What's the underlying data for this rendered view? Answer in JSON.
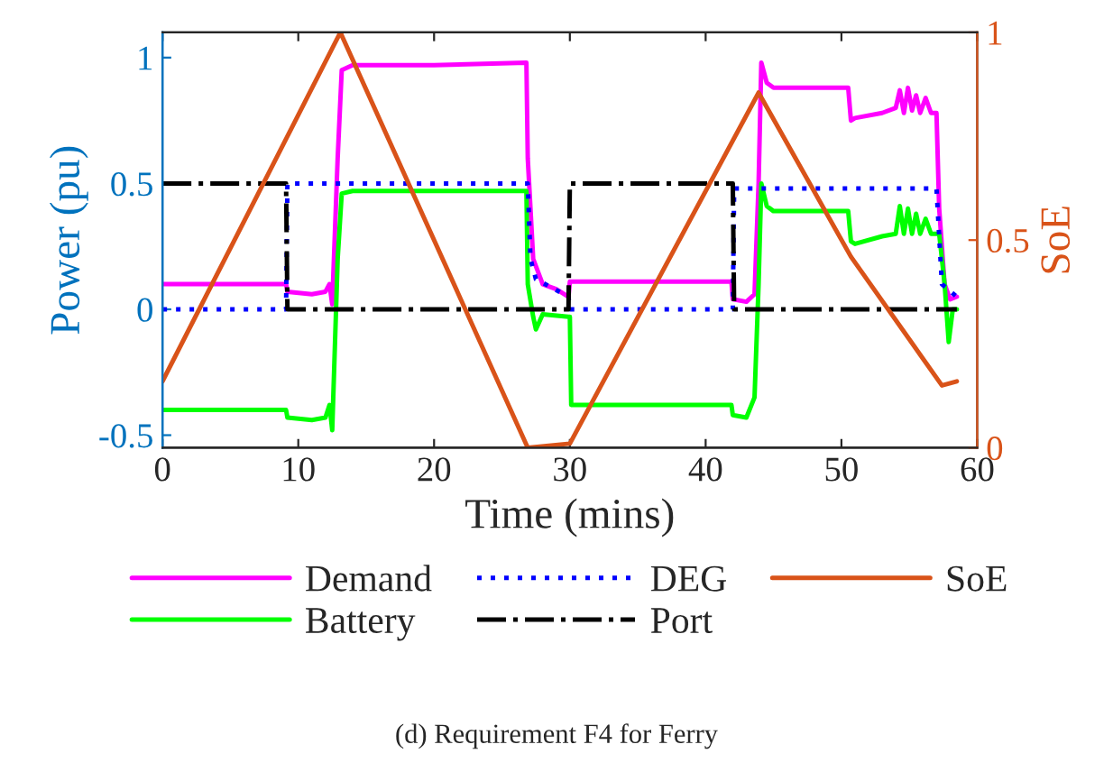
{
  "chart_data": {
    "type": "line",
    "xlabel": "Time (mins)",
    "ylabel": "Power (pu)",
    "y2label": "SoE",
    "xlim": [
      0,
      60
    ],
    "xticks": [
      0,
      10,
      20,
      30,
      40,
      50,
      60
    ],
    "ylim": [
      -0.55,
      1.1
    ],
    "yticks": [
      {
        "value": -0.5,
        "label": "-0.5"
      },
      0,
      0.5,
      1
    ],
    "y2lim": [
      0,
      1
    ],
    "y2ticks": [
      0,
      0.5,
      1
    ],
    "grid": false,
    "legend": "bottom",
    "marker": "none",
    "annotations": [
      "(d) Requirement F4 for Ferry"
    ],
    "series": [
      {
        "name": "Demand",
        "color": "#ff00ff",
        "line_style": "solid",
        "x": [
          0,
          9.1,
          9.2,
          11,
          12,
          12.3,
          12.5,
          12.9,
          13.2,
          14,
          20,
          26.8,
          26.9,
          27.3,
          28,
          29,
          29.9,
          30,
          41.9,
          42,
          43,
          43.6,
          43.9,
          44.1,
          44.5,
          45,
          50.5,
          50.7,
          51,
          53,
          54,
          54.3,
          54.6,
          54.9,
          55.2,
          55.5,
          55.8,
          56.2,
          56.6,
          57,
          57.2,
          57.6,
          58,
          58.5
        ],
        "values": [
          0.1,
          0.1,
          0.07,
          0.06,
          0.07,
          0.1,
          0.02,
          0.6,
          0.95,
          0.97,
          0.97,
          0.98,
          0.6,
          0.2,
          0.1,
          0.08,
          0.05,
          0.11,
          0.11,
          0.04,
          0.03,
          0.06,
          0.5,
          0.98,
          0.9,
          0.88,
          0.88,
          0.75,
          0.76,
          0.78,
          0.8,
          0.87,
          0.78,
          0.88,
          0.79,
          0.85,
          0.78,
          0.84,
          0.78,
          0.78,
          0.4,
          0.1,
          0.04,
          0.05
        ]
      },
      {
        "name": "Battery",
        "color": "#00ff00",
        "line_style": "solid",
        "x": [
          0,
          9.1,
          9.2,
          11,
          12,
          12.3,
          12.5,
          12.9,
          13.2,
          14,
          20,
          26.8,
          26.9,
          27.3,
          27.5,
          28,
          29.9,
          30,
          30.1,
          41.9,
          42,
          43,
          43.6,
          43.9,
          44.1,
          44.5,
          45,
          50.5,
          50.7,
          51,
          53,
          54,
          54.3,
          54.6,
          54.9,
          55.2,
          55.5,
          55.8,
          56.2,
          56.6,
          57.2,
          57.6,
          57.9,
          58.2,
          58.5
        ],
        "values": [
          -0.4,
          -0.4,
          -0.43,
          -0.44,
          -0.43,
          -0.38,
          -0.48,
          0.2,
          0.46,
          0.47,
          0.47,
          0.47,
          0.1,
          -0.03,
          -0.08,
          -0.02,
          -0.03,
          -0.03,
          -0.38,
          -0.38,
          -0.42,
          -0.43,
          -0.35,
          0.1,
          0.5,
          0.41,
          0.39,
          0.39,
          0.27,
          0.26,
          0.29,
          0.3,
          0.41,
          0.3,
          0.4,
          0.3,
          0.38,
          0.3,
          0.36,
          0.3,
          0.3,
          0.1,
          -0.13,
          0,
          0
        ]
      },
      {
        "name": "DEG",
        "color": "#0000ff",
        "line_style": "dotted",
        "x": [
          0,
          9.1,
          9.2,
          26.9,
          27.1,
          27.5,
          29.9,
          30,
          42,
          42.1,
          57.0,
          57.4,
          58.5
        ],
        "values": [
          0,
          0,
          0.5,
          0.5,
          0.2,
          0.12,
          0.05,
          0,
          0,
          0.48,
          0.48,
          0.1,
          0.05
        ]
      },
      {
        "name": "Port",
        "color": "#000000",
        "line_style": "dashdot",
        "x": [
          0,
          9.1,
          9.2,
          29.9,
          30,
          42,
          42.1,
          58.5
        ],
        "values": [
          0.5,
          0.5,
          0,
          0,
          0.5,
          0.5,
          0,
          0
        ]
      },
      {
        "name": "SoE",
        "color": "#d95319",
        "line_style": "solid",
        "axis": "y2",
        "x": [
          0,
          13.1,
          26.9,
          30,
          43.9,
          50.7,
          57.4,
          58.5
        ],
        "values": [
          0.16,
          1,
          0,
          0.01,
          0.855,
          0.46,
          0.15,
          0.16
        ]
      }
    ]
  }
}
